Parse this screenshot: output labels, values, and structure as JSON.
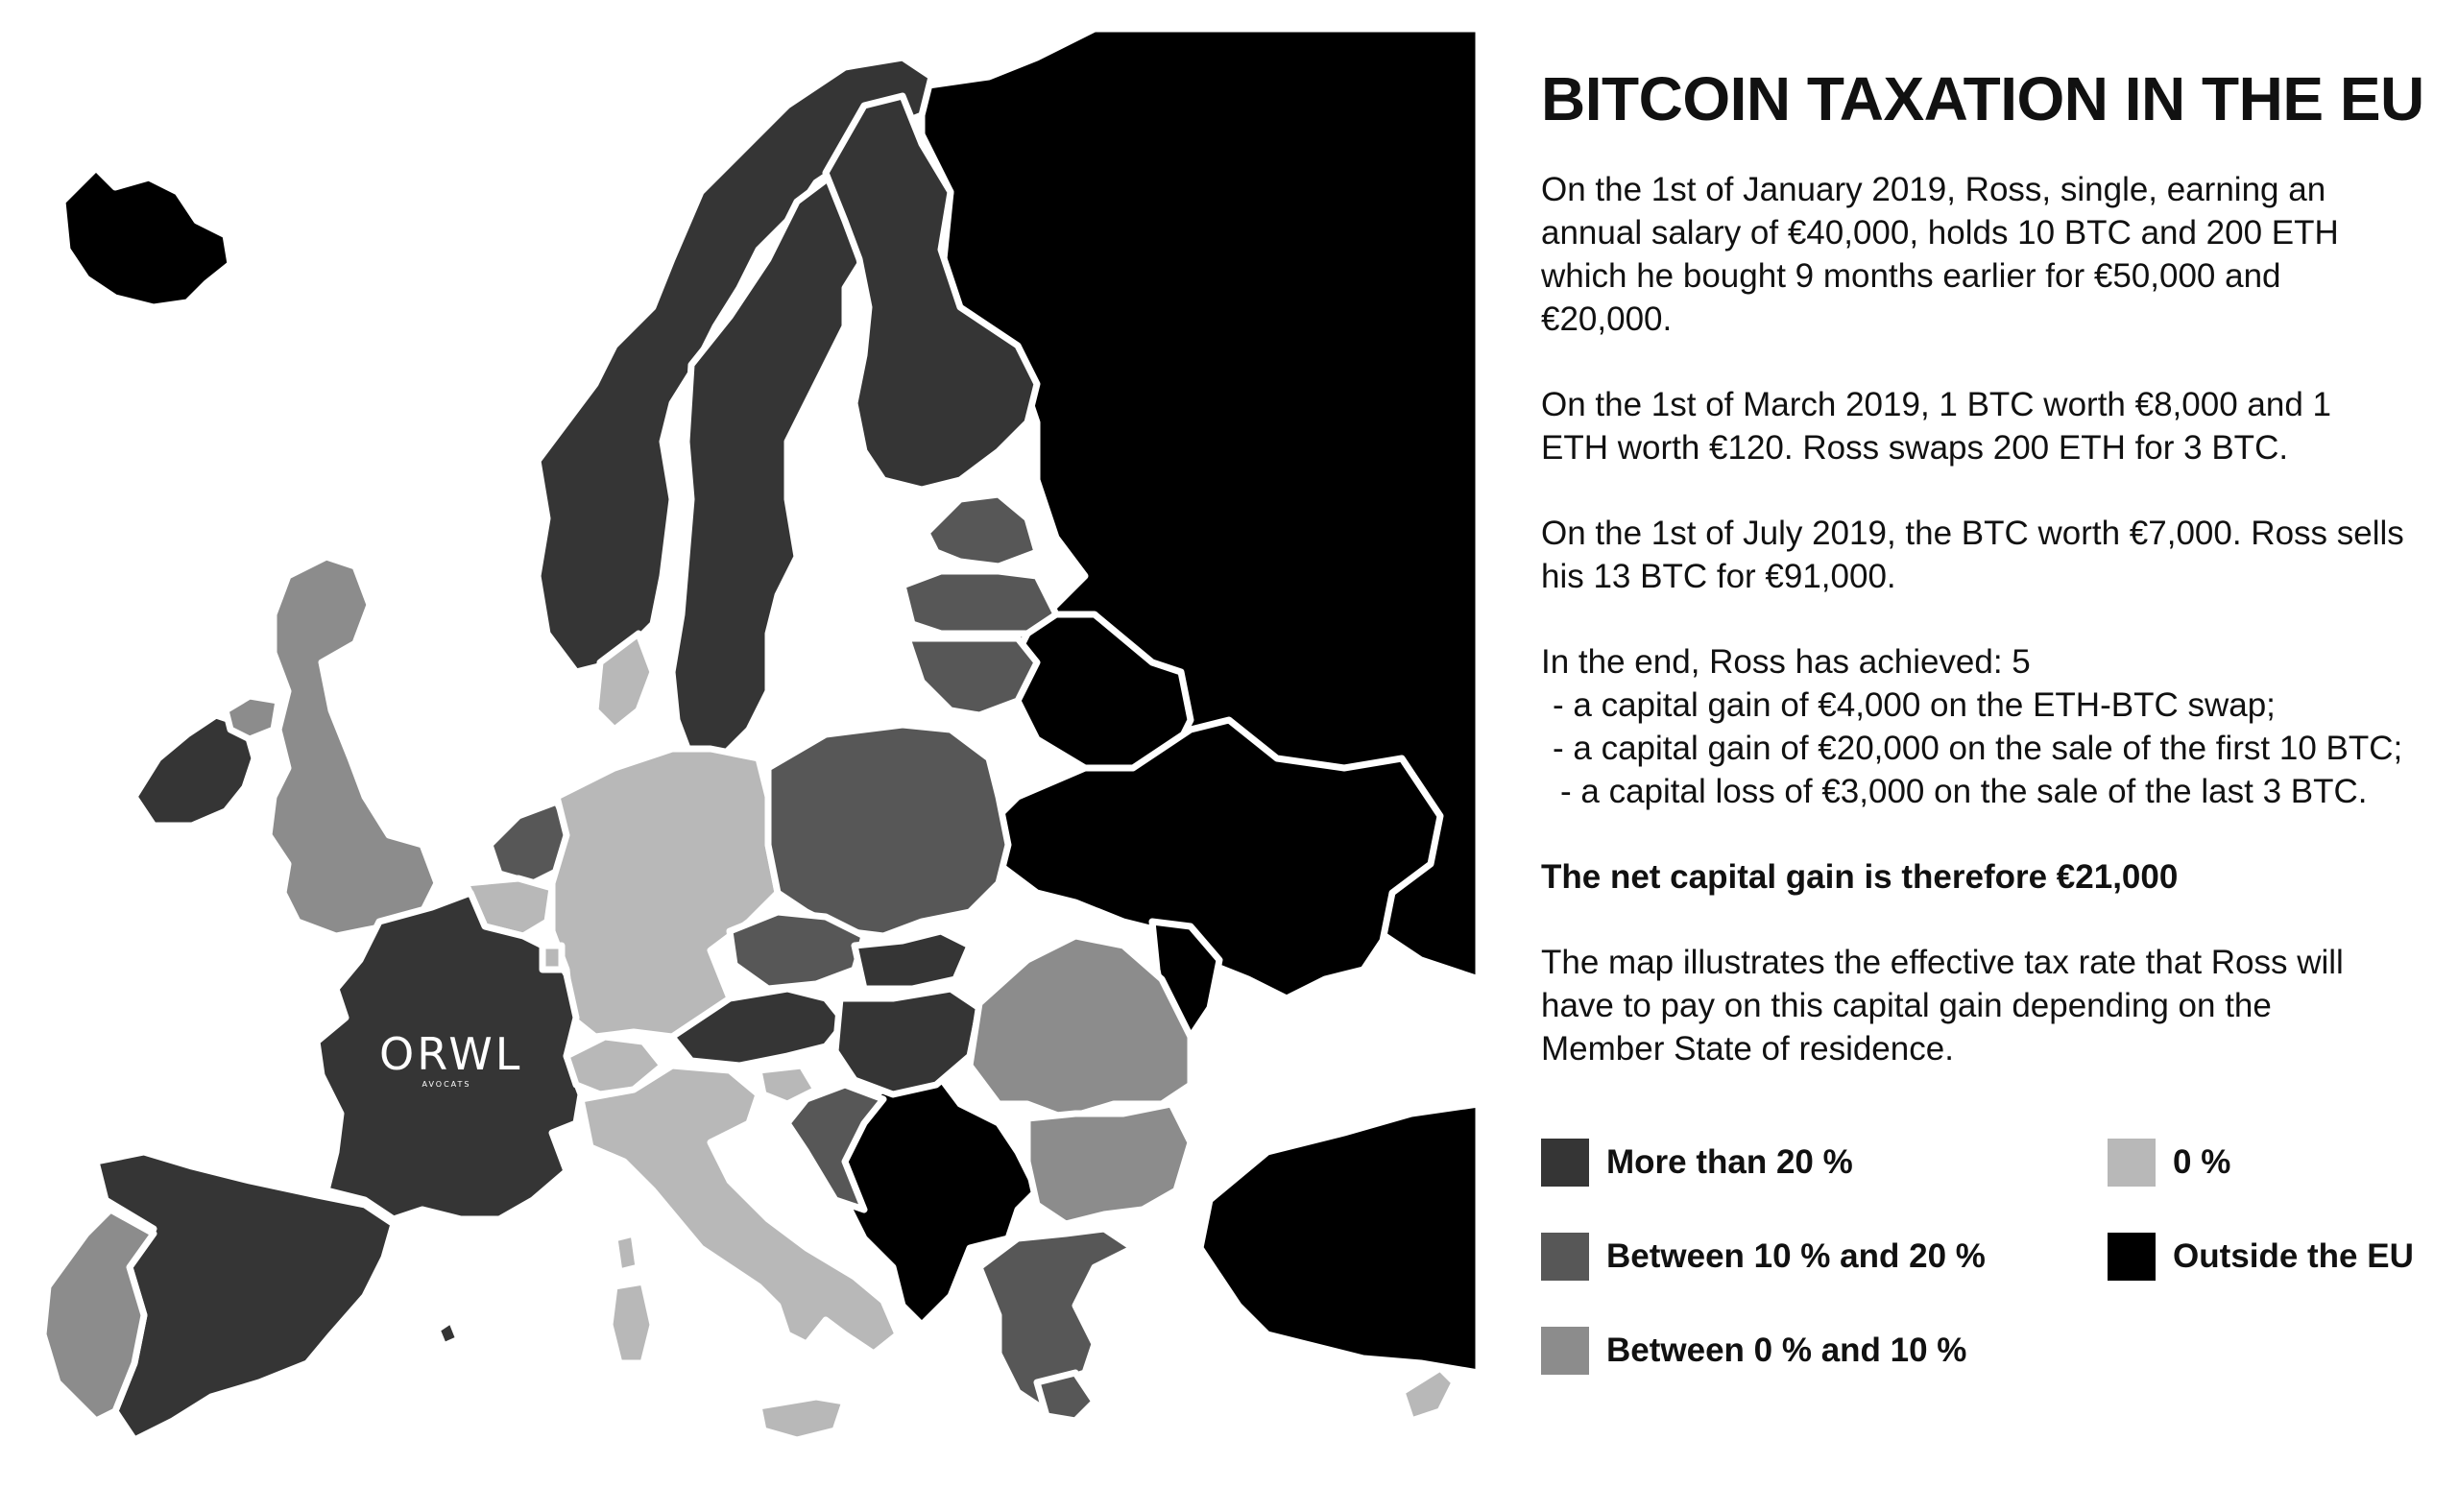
{
  "title": "BITCOIN TAXATION IN THE EU",
  "paragraphs": {
    "p1": [
      "On the 1st of January 2019, Ross, single, earning an",
      "annual salary of €40,000, holds 10 BTC and 200 ETH",
      "which he bought 9 months earlier for €50,000 and",
      "€20,000."
    ],
    "p2": [
      "On the 1st of March 2019, 1 BTC worth €8,000 and 1",
      "ETH worth €120. Ross swaps 200 ETH for 3 BTC."
    ],
    "p3": [
      "On the 1st of July 2019, the BTC worth €7,000. Ross sells",
      "his 13 BTC for €91,000."
    ],
    "p4": [
      "In the end, Ross has achieved: 5",
      "- a capital gain of €4,000 on the ETH-BTC swap;",
      "- a capital gain of €20,000 on the sale of the first 10 BTC;",
      "- a capital loss of €3,000 on the sale of the last 3 BTC."
    ],
    "p5": "The net capital gain is therefore €21,000",
    "p6": [
      "The map illustrates the effective tax rate that Ross will",
      "have to pay on this capital gain depending on the",
      "Member State of residence."
    ]
  },
  "legend": [
    {
      "label": "More than 20 %",
      "color": "#353535"
    },
    {
      "label": "0 %",
      "color": "#b8b8b8"
    },
    {
      "label": "Between 10 % and 20 %",
      "color": "#575757"
    },
    {
      "label": "Outside the EU",
      "color": "#000000"
    },
    {
      "label": "Between 0 % and 10 %",
      "color": "#8c8c8c"
    }
  ],
  "logo": {
    "main": "ORWL",
    "sub": "AVOCATS"
  },
  "colors": {
    "more_than_20": "#353535",
    "between_10_20": "#575757",
    "between_0_10": "#8c8c8c",
    "zero": "#b8b8b8",
    "outside_eu": "#000000",
    "border": "#ffffff"
  }
}
